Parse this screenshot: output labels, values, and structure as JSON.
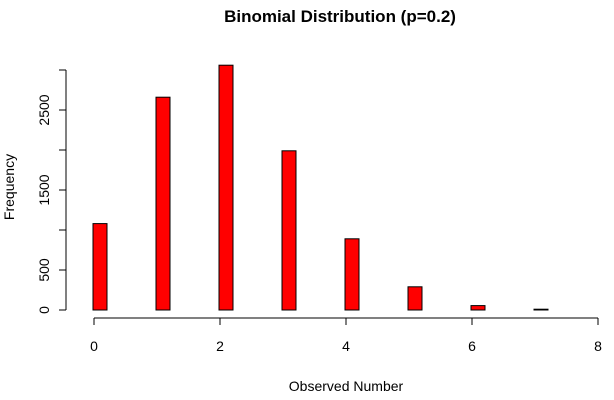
{
  "chart_data": {
    "type": "bar",
    "title": "Binomial Distribution (p=0.2)",
    "xlabel": "Observed Number",
    "ylabel": "Frequency",
    "xlim": [
      0,
      8
    ],
    "ylim": [
      0,
      3000
    ],
    "x_ticks": [
      0,
      2,
      4,
      6,
      8
    ],
    "y_ticks": [
      0,
      500,
      1500,
      2500
    ],
    "y_axis_max": 3000,
    "x": [
      0,
      1,
      2,
      3,
      4,
      5,
      6,
      7
    ],
    "values": [
      1080,
      2660,
      3060,
      1990,
      890,
      290,
      55,
      10
    ],
    "bar_color": "#ff0000",
    "grid": false,
    "legend": "none"
  }
}
